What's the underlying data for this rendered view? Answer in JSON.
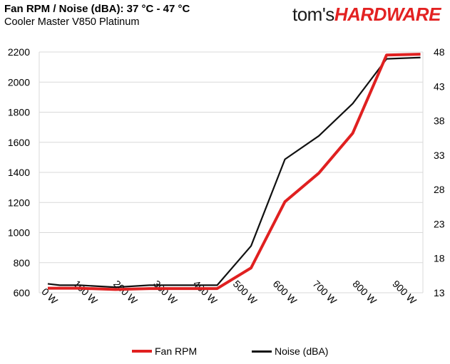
{
  "header": {
    "title": "Fan RPM / Noise (dBA): 37 °C - 47 °C",
    "subtitle": "Cooler Master V850 Platinum",
    "logo_part1": "tom's",
    "logo_part2": "HARDWARE"
  },
  "chart_data": {
    "type": "line",
    "title": "Fan RPM / Noise (dBA): 37 °C - 47 °C",
    "subtitle": "Cooler Master V850 Platinum",
    "x_ticks": [
      0,
      100,
      200,
      300,
      400,
      500,
      600,
      700,
      800,
      900
    ],
    "x_tick_labels": [
      "0 W",
      "100 W",
      "200 W",
      "300 W",
      "400 W",
      "500 W",
      "600 W",
      "700 W",
      "800 W",
      "900 W"
    ],
    "xlim": [
      0,
      950
    ],
    "y_left_ticks": [
      600,
      800,
      1000,
      1200,
      1400,
      1600,
      1800,
      2000,
      2200
    ],
    "ylim_left": [
      600,
      2200
    ],
    "y_right_ticks": [
      13,
      18,
      23,
      28,
      33,
      38,
      43,
      48
    ],
    "ylim_right": [
      13,
      48
    ],
    "grid": "horizontal",
    "legend_position": "bottom",
    "series": [
      {
        "name": "Fan RPM",
        "axis": "left",
        "color": "#e02020",
        "x": [
          0,
          30,
          80,
          170,
          255,
          340,
          425,
          510,
          595,
          680,
          765,
          850,
          935
        ],
        "y": [
          630,
          630,
          630,
          622,
          628,
          628,
          628,
          765,
          1205,
          1395,
          1660,
          2180,
          2185
        ]
      },
      {
        "name": "Noise (dBA)",
        "axis": "right",
        "color": "#111111",
        "x": [
          0,
          30,
          80,
          170,
          255,
          340,
          425,
          510,
          595,
          680,
          765,
          850,
          935
        ],
        "y": [
          14.3,
          14.1,
          14.1,
          13.8,
          14.1,
          14.1,
          14.1,
          19.8,
          32.4,
          35.8,
          40.5,
          47.0,
          47.2
        ]
      }
    ]
  }
}
